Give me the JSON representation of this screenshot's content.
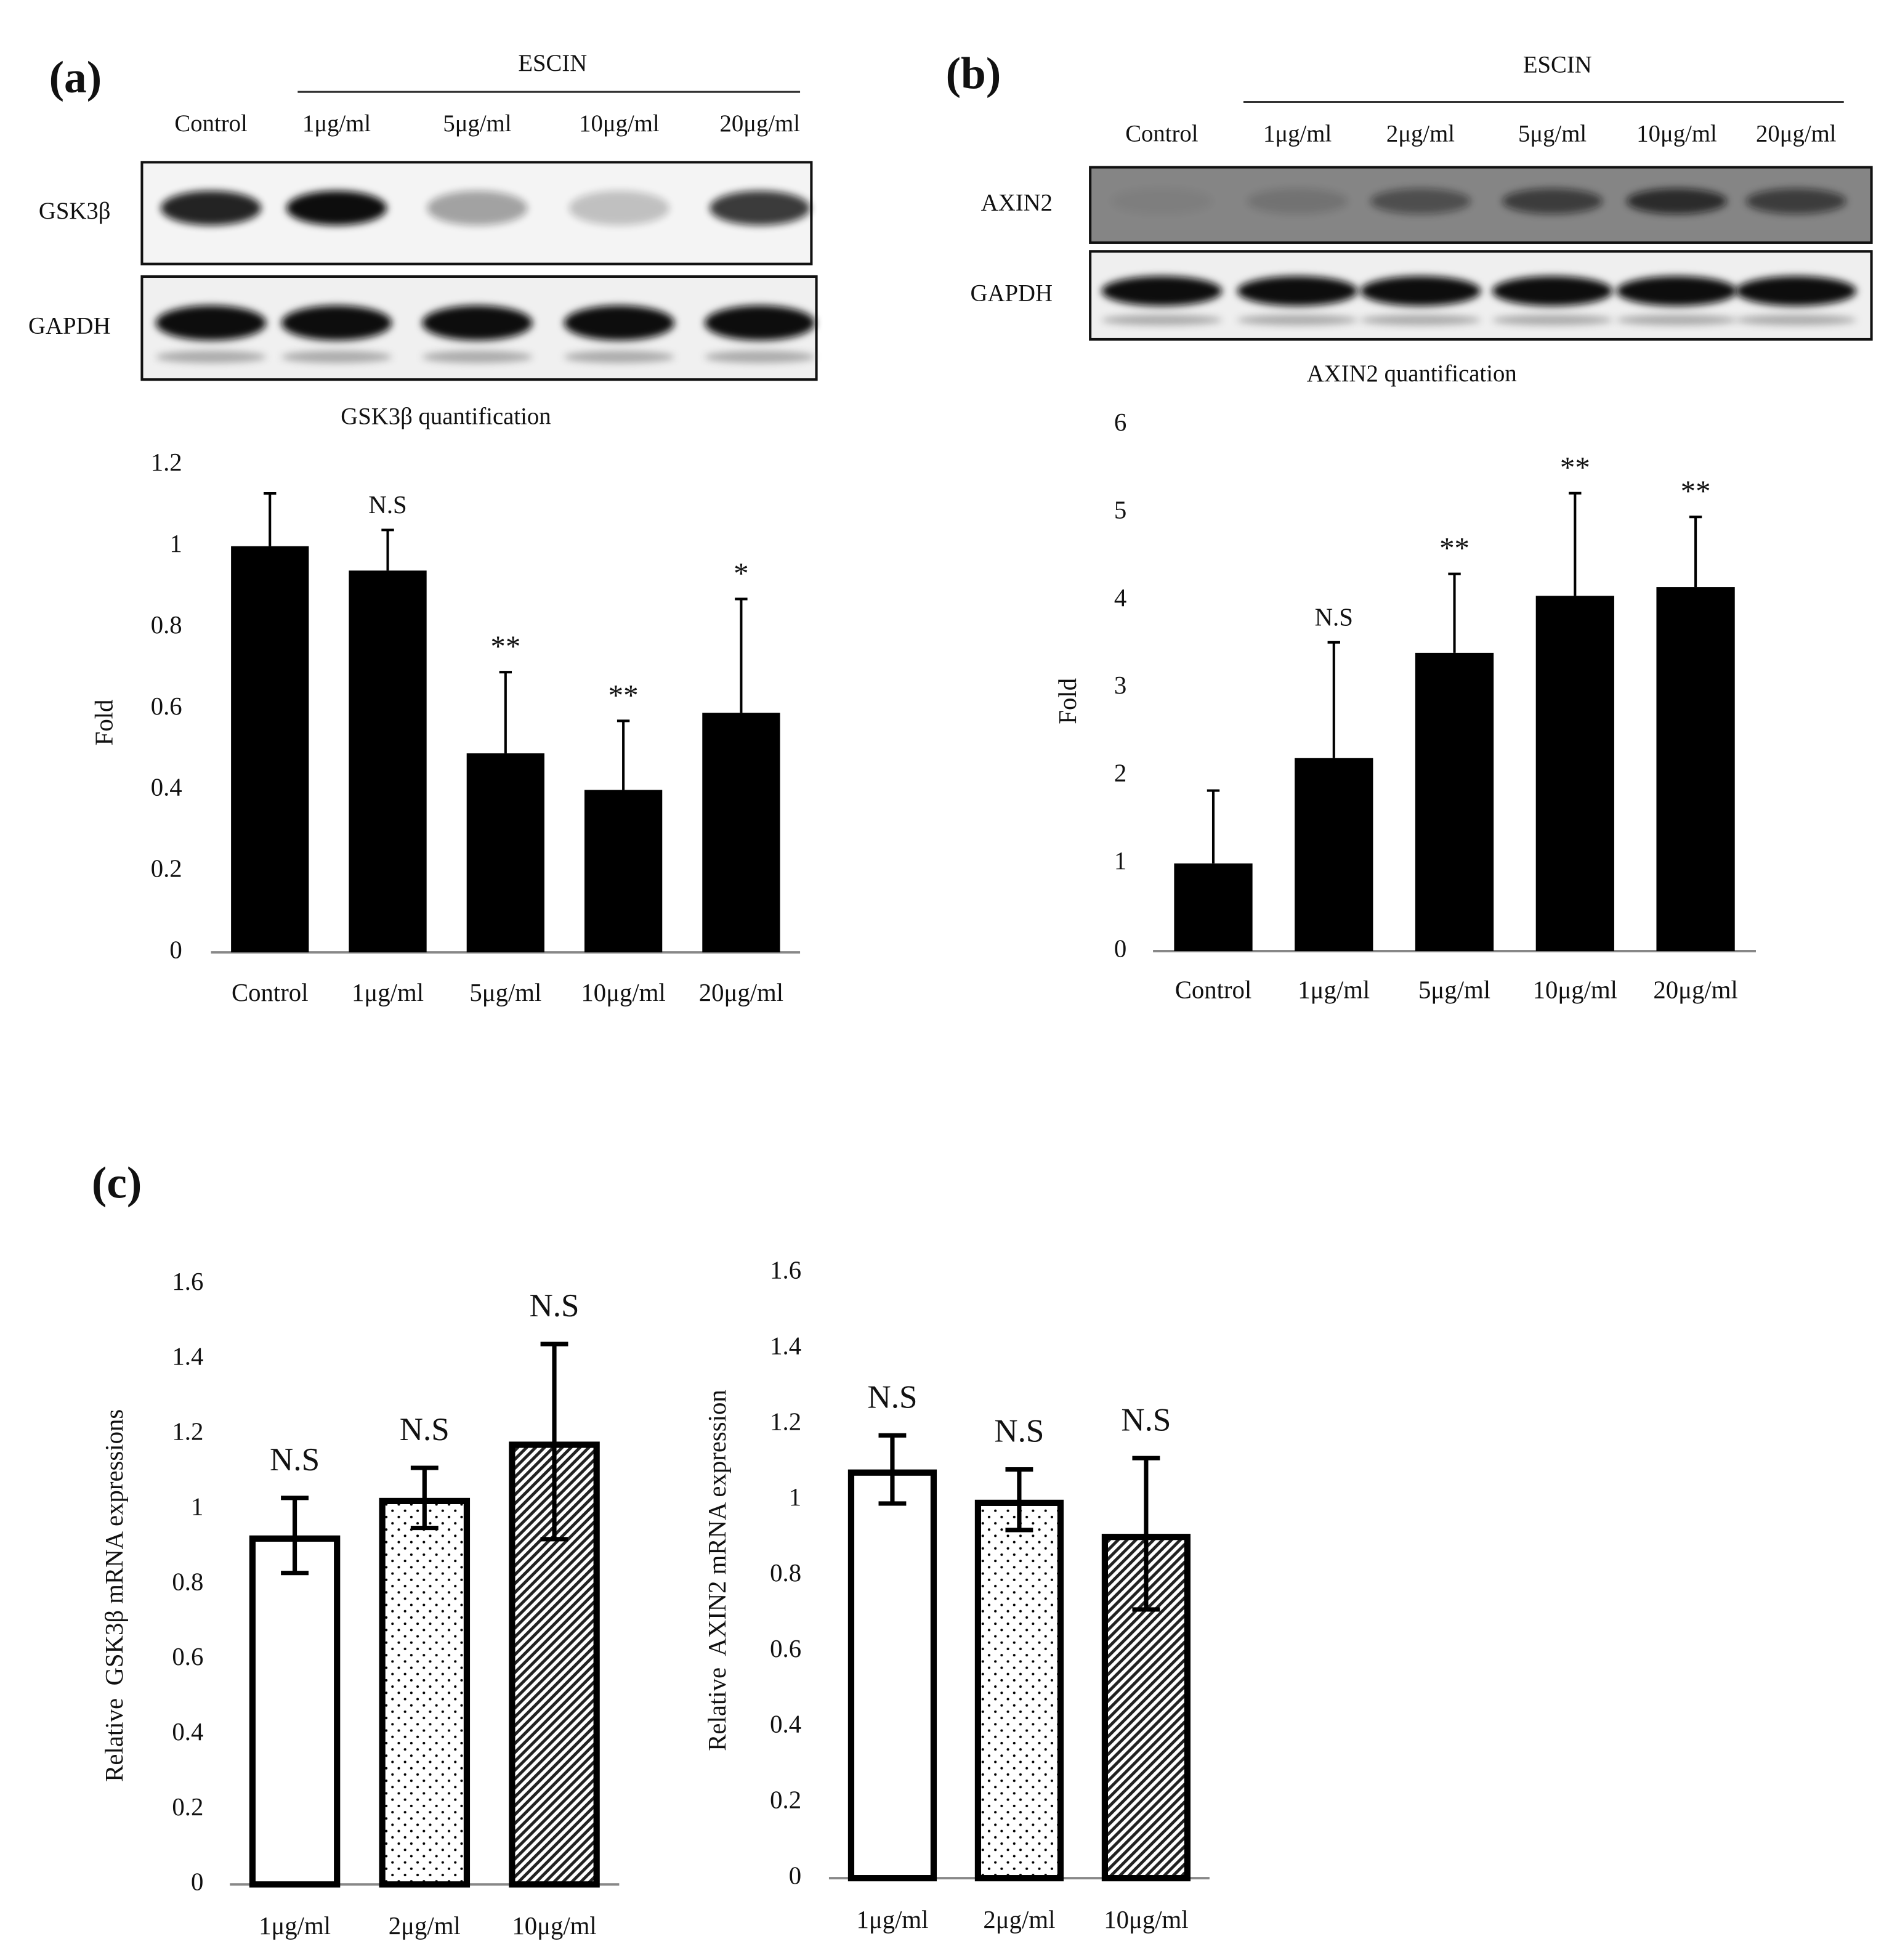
{
  "panels": [
    "(a)",
    "(b)",
    "(c)"
  ],
  "blots": [
    {
      "group": "ESCIN",
      "lanes": [
        "Control",
        "1μg/ml",
        "5μg/ml",
        "10μg/ml",
        "20μg/ml"
      ],
      "rows": [
        "GSK3β",
        "GAPDH"
      ]
    },
    {
      "group": "ESCIN",
      "lanes": [
        "Control",
        "1μg/ml",
        "2μg/ml",
        "5μg/ml",
        "10μg/ml",
        "20μg/ml"
      ],
      "rows": [
        "AXIN2",
        "GAPDH"
      ]
    }
  ],
  "chart_data": [
    {
      "type": "bar",
      "title": "GSK3β quantification",
      "y_label": "Fold",
      "categories": [
        "Control",
        "1μg/ml",
        "5μg/ml",
        "10μg/ml",
        "20μg/ml"
      ],
      "values": [
        1,
        0.94,
        0.49,
        0.4,
        0.59
      ],
      "errors": [
        0.13,
        0.1,
        0.2,
        0.17,
        0.28
      ],
      "error_direction": "up",
      "annotations": [
        null,
        "N.S",
        "**",
        "**",
        "*"
      ],
      "color": "#000000",
      "ylim": [
        0,
        1.2
      ],
      "yticks": [
        0,
        0.2,
        0.4,
        0.6,
        0.8,
        1,
        1.2
      ]
    },
    {
      "type": "bar",
      "title": "AXIN2 quantification",
      "y_label": "Fold",
      "categories": [
        "Control",
        "1μg/ml",
        "5μg/ml",
        "10μg/ml",
        "20μg/ml"
      ],
      "values": [
        1,
        2.2,
        3.4,
        4.05,
        4.15
      ],
      "errors": [
        0.83,
        1.32,
        0.9,
        1.17,
        0.8
      ],
      "error_direction": "up",
      "annotations": [
        null,
        "N.S",
        "**",
        "**",
        "**"
      ],
      "color": "#000000",
      "ylim": [
        0,
        6
      ],
      "yticks": [
        0,
        1,
        2,
        3,
        4,
        5,
        6
      ]
    },
    {
      "type": "bar",
      "y_label": "Relative  GSK3β mRNA expressions",
      "categories": [
        "1μg/ml",
        "2μg/ml",
        "10μg/ml"
      ],
      "values": [
        0.93,
        1.03,
        1.18
      ],
      "errors": [
        0.1,
        0.08,
        0.26
      ],
      "error_direction": "both",
      "annotations": [
        "N.S",
        "N.S",
        "N.S"
      ],
      "patterns": [
        "none",
        "dots",
        "hatch"
      ],
      "color": "#000000",
      "ylim": [
        0,
        1.6
      ],
      "yticks": [
        0,
        0.2,
        0.4,
        0.6,
        0.8,
        1,
        1.2,
        1.4,
        1.6
      ]
    },
    {
      "type": "bar",
      "y_label": "Relative  AXIN2 mRNA expression",
      "categories": [
        "1μg/ml",
        "2μg/ml",
        "10μg/ml"
      ],
      "values": [
        1.08,
        1.0,
        0.91
      ],
      "errors": [
        0.09,
        0.08,
        0.2
      ],
      "error_direction": "both",
      "annotations": [
        "N.S",
        "N.S",
        "N.S"
      ],
      "patterns": [
        "none",
        "dots",
        "hatch"
      ],
      "color": "#000000",
      "ylim": [
        0,
        1.6
      ],
      "yticks": [
        0,
        0.2,
        0.4,
        0.6,
        0.8,
        1,
        1.2,
        1.4,
        1.6
      ]
    }
  ]
}
